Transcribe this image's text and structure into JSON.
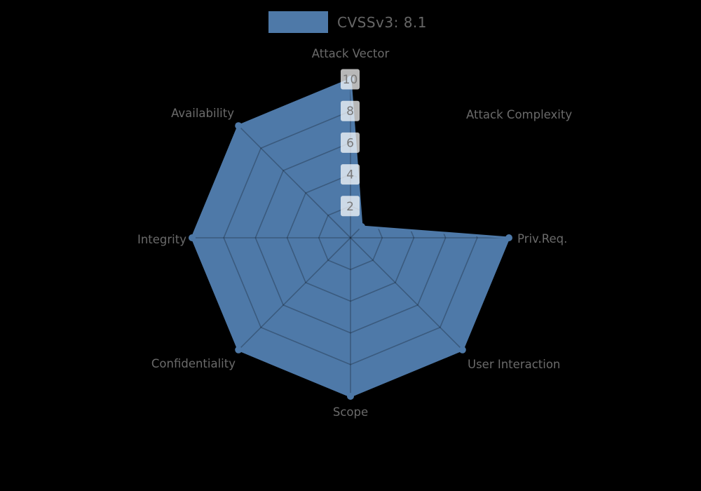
{
  "legend": {
    "label": "CVSSv3: 8.1",
    "swatch_color": "#4e79a8"
  },
  "chart_data": {
    "type": "radar",
    "title": "CVSSv3: 8.1",
    "categories": [
      "Attack Vector",
      "Attack Complexity",
      "Priv.Req.",
      "User Interaction",
      "Scope",
      "Confidentiality",
      "Integrity",
      "Availability"
    ],
    "series": [
      {
        "name": "CVSSv3: 8.1",
        "values": [
          10,
          1,
          10,
          10,
          10,
          10,
          10,
          10
        ]
      }
    ],
    "rmin": 0,
    "rmax": 10,
    "rticks": [
      2,
      4,
      6,
      8,
      10
    ],
    "grid": "octagonal-web, visible only inside filled polygon",
    "legend_position": "top-center",
    "colors": {
      "background": "#000000",
      "fill": "#4e79a8",
      "stroke": "#4e79a8",
      "grid_line": "rgba(0,0,0,0.25)",
      "axis_label": "#6a6a6a",
      "tick_text": "#787878",
      "tick_box": "rgba(255,255,255,0.72)"
    }
  }
}
